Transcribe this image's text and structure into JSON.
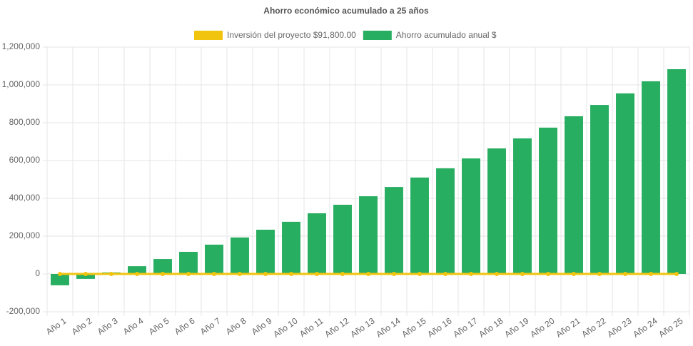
{
  "chart_data": {
    "type": "bar",
    "title": "Ahorro económico acumulado a 25 años",
    "categories": [
      "Año 1",
      "Año 2",
      "Año 3",
      "Año 4",
      "Año 5",
      "Año 6",
      "Año 7",
      "Año 8",
      "Año 9",
      "Año 10",
      "Año 11",
      "Año 12",
      "Año 13",
      "Año 14",
      "Año 15",
      "Año 16",
      "Año 17",
      "Año 18",
      "Año 19",
      "Año 20",
      "Año 21",
      "Año 22",
      "Año 23",
      "Año 24",
      "Año 25"
    ],
    "series": [
      {
        "name": "Inversión del proyecto $91,800.00",
        "type": "line",
        "color": "#f1c40f",
        "values": [
          0,
          0,
          0,
          0,
          0,
          0,
          0,
          0,
          0,
          0,
          0,
          0,
          0,
          0,
          0,
          0,
          0,
          0,
          0,
          0,
          0,
          0,
          0,
          0,
          0
        ]
      },
      {
        "name": "Ahorro acumulado anual $",
        "type": "bar",
        "color": "#27ae60",
        "values": [
          -60000,
          -26000,
          8000,
          41000,
          79000,
          117000,
          155000,
          193000,
          234000,
          276000,
          321000,
          366000,
          411000,
          460000,
          510000,
          559000,
          611000,
          664000,
          717000,
          774000,
          834000,
          894000,
          955000,
          1019000,
          1083000
        ]
      }
    ],
    "ylim": [
      -200000,
      1200000
    ],
    "yticks": [
      {
        "value": -200000,
        "label": "-200,000"
      },
      0,
      {
        "value": 200000,
        "label": "200,000"
      },
      {
        "value": 400000,
        "label": "400,000"
      },
      {
        "value": 600000,
        "label": "600,000"
      },
      {
        "value": 800000,
        "label": "800,000"
      },
      {
        "value": 1000000,
        "label": "1,000,000"
      },
      {
        "value": 1200000,
        "label": "1,200,000"
      }
    ],
    "grid": true
  }
}
